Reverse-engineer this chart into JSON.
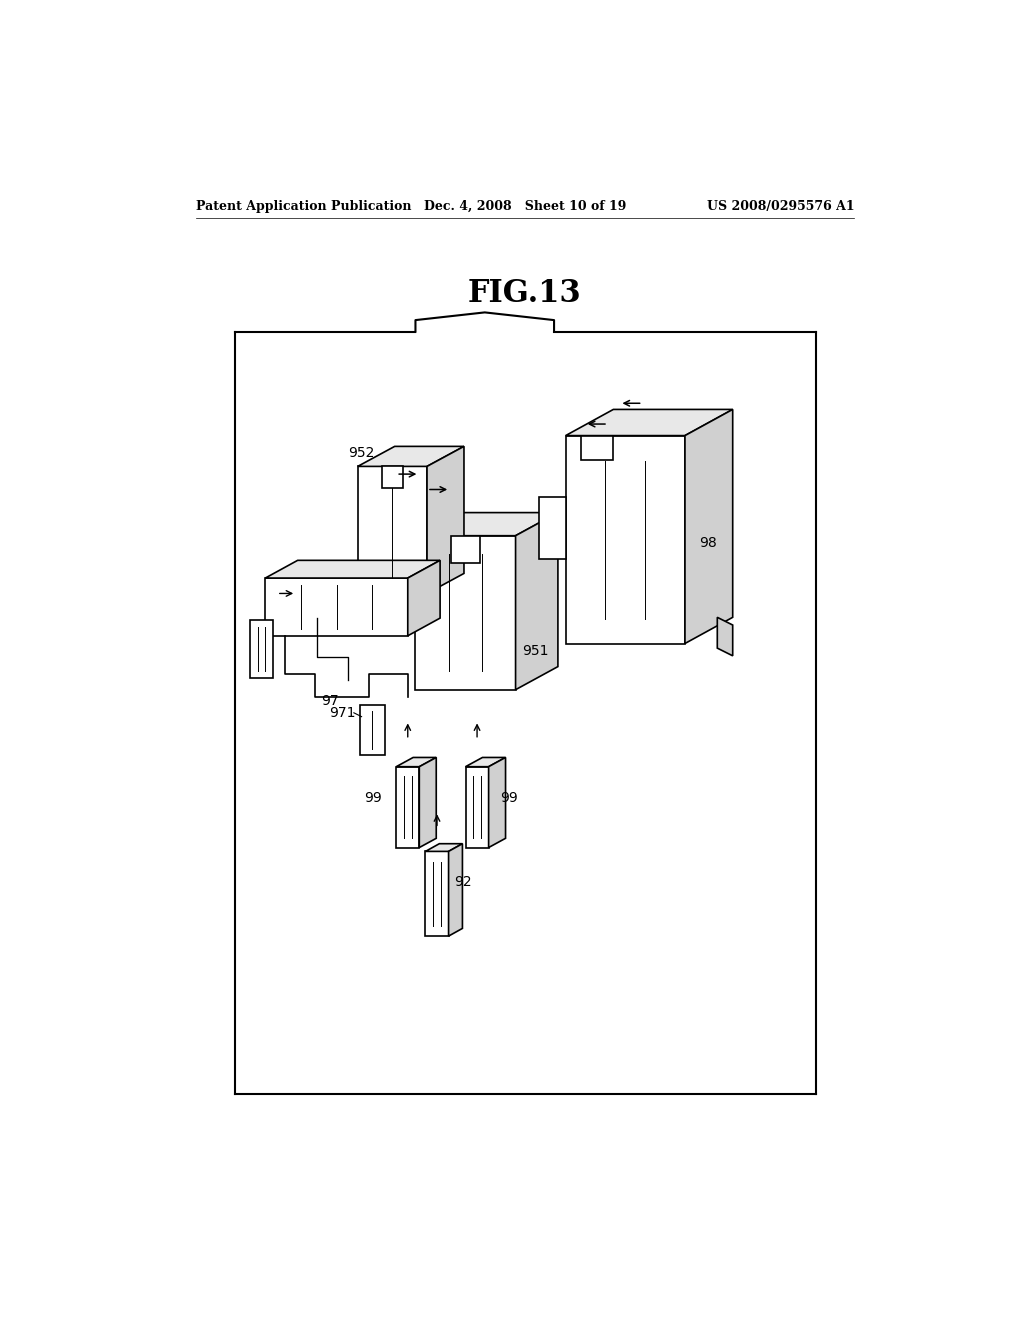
{
  "bg_color": "#ffffff",
  "lc": "#000000",
  "header_left": "Patent Application Publication",
  "header_mid": "Dec. 4, 2008   Sheet 10 of 19",
  "header_right": "US 2008/0295576 A1",
  "figure_title": "FIG.13",
  "lw": 1.2,
  "lw_thin": 0.7,
  "face_color": "#ffffff",
  "shade_color": "#e8e8e8",
  "shade2_color": "#d0d0d0"
}
